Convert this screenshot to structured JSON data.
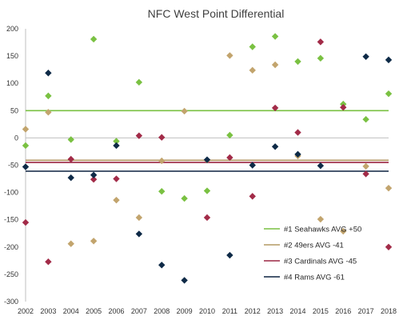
{
  "chart_data": {
    "type": "scatter",
    "title": "NFC West Point Differential",
    "xlabel": "",
    "ylabel": "",
    "categories": [
      "2002",
      "2003",
      "2004",
      "2005",
      "2006",
      "2007",
      "2008",
      "2009",
      "2010",
      "2011",
      "2012",
      "2013",
      "2014",
      "2015",
      "2016",
      "2017",
      "2018"
    ],
    "ylim": [
      -300,
      200
    ],
    "yticks": [
      200,
      150,
      100,
      50,
      0,
      -50,
      -100,
      -150,
      -200,
      -250,
      -300
    ],
    "grid": false,
    "legend_position": "bottom-right",
    "series": [
      {
        "name": "#1 Seahawks AVG +50",
        "color": "#7AC142",
        "marker_color": "#7AC142",
        "average": 50,
        "values": [
          -14,
          77,
          -3,
          181,
          -6,
          102,
          -98,
          -111,
          -97,
          5,
          167,
          186,
          140,
          146,
          62,
          34,
          81
        ]
      },
      {
        "name": "#2 49ers AVG -41",
        "color": "#B39A64",
        "marker_color": "#C2A46D",
        "average": -41,
        "values": [
          16,
          47,
          -194,
          -189,
          -114,
          -146,
          -42,
          49,
          -41,
          151,
          124,
          134,
          -33,
          -149,
          -171,
          -52,
          -92
        ]
      },
      {
        "name": "#3 Cardinals AVG -45",
        "color": "#9B2743",
        "marker_color": "#A22B48",
        "average": -45,
        "values": [
          -155,
          -227,
          -39,
          -76,
          -75,
          4,
          1,
          null,
          -146,
          -36,
          -107,
          55,
          10,
          176,
          56,
          -66,
          -200
        ]
      },
      {
        "name": "#4 Rams AVG -61",
        "color": "#0D2240",
        "marker_color": "#0E2A47",
        "average": -61,
        "values": [
          -53,
          119,
          -73,
          -68,
          -14,
          -176,
          -233,
          -261,
          -40,
          -215,
          -50,
          -16,
          -30,
          -51,
          null,
          149,
          143
        ]
      }
    ]
  }
}
